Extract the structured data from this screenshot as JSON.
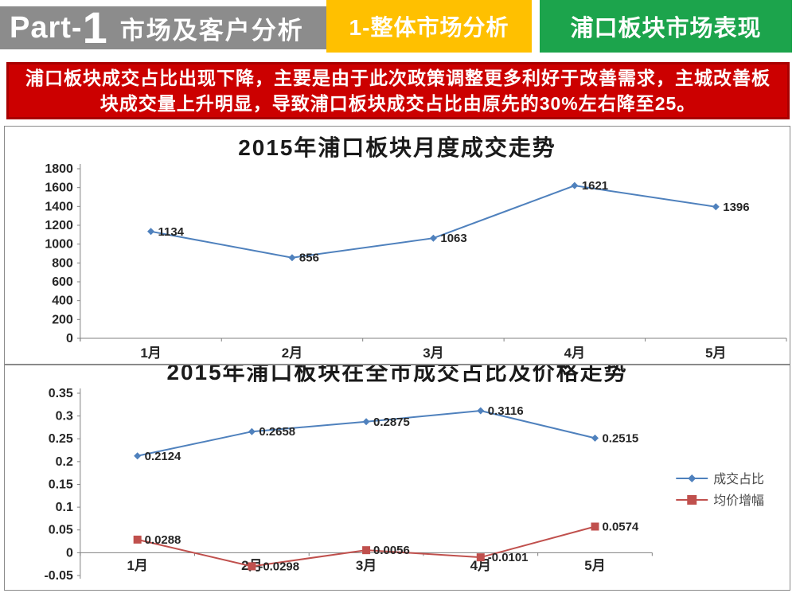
{
  "header": {
    "part_prefix": "Part-",
    "part_number": "1",
    "section_title": "市场及客户分析",
    "bar_bg": "#8C8C8C",
    "tabs": [
      {
        "label": "1-整体市场分析",
        "bg": "#FFC000"
      },
      {
        "label": "浦口板块市场表现",
        "bg": "#1CA44C"
      }
    ]
  },
  "banner": {
    "text": "浦口板块成交占比出现下降，主要是由于此次政策调整更多利好于改善需求，主城改善板块成交量上升明显，导致浦口板块成交占比由原先的30%左右降至25。",
    "bg": "#CC0000",
    "border_color": "#A80000",
    "text_color": "#FFFFFF"
  },
  "chart_data": [
    {
      "type": "line",
      "title": "2015年浦口板块月度成交走势",
      "categories": [
        "1月",
        "2月",
        "3月",
        "4月",
        "5月"
      ],
      "series": [
        {
          "color": "#4F81BD",
          "marker": "diamond",
          "values": [
            1134,
            856,
            1063,
            1621,
            1396
          ],
          "labels": [
            "1134",
            "856",
            "1063",
            "1621",
            "1396"
          ]
        }
      ],
      "ylim": [
        0,
        1800
      ],
      "yticks": [
        0,
        200,
        400,
        600,
        800,
        1000,
        1200,
        1400,
        1600,
        1800
      ],
      "ytick_labels": [
        "0",
        "200",
        "400",
        "600",
        "800",
        "1000",
        "1200",
        "1400",
        "1600",
        "1800"
      ],
      "grid": false,
      "legend": false
    },
    {
      "type": "line",
      "title": "2015年浦口板块在全市成交占比及价格走势",
      "categories": [
        "1月",
        "2月",
        "3月",
        "4月",
        "5月"
      ],
      "series": [
        {
          "name": "成交占比",
          "color": "#4F81BD",
          "marker": "diamond",
          "values": [
            0.2124,
            0.2658,
            0.2875,
            0.3116,
            0.2515
          ],
          "labels": [
            "0.2124",
            "0.2658",
            "0.2875",
            "0.3116",
            "0.2515"
          ]
        },
        {
          "name": "均价增幅",
          "color": "#C0504D",
          "marker": "square",
          "values": [
            0.0288,
            -0.0298,
            0.0056,
            -0.0101,
            0.0574
          ],
          "labels": [
            "0.0288",
            "-0.0298",
            "0.0056",
            "-0.0101",
            "0.0574"
          ]
        }
      ],
      "ylim": [
        -0.05,
        0.35
      ],
      "yticks": [
        -0.05,
        0,
        0.05,
        0.1,
        0.15,
        0.2,
        0.25,
        0.3,
        0.35
      ],
      "ytick_labels": [
        "-0.05",
        "0",
        "0.05",
        "0.1",
        "0.15",
        "0.2",
        "0.25",
        "0.3",
        "0.35"
      ],
      "grid": false,
      "legend": true,
      "legend_position": "right"
    }
  ]
}
